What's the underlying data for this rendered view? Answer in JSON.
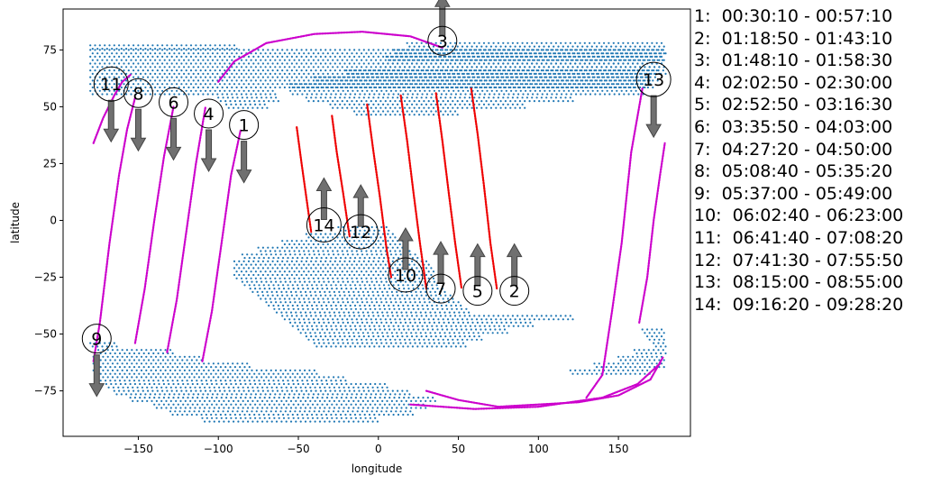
{
  "chart_data": {
    "type": "scatter",
    "xlabel": "longitude",
    "ylabel": "latitude",
    "xlim": [
      -197,
      195
    ],
    "ylim": [
      -95,
      93
    ],
    "xticks": [
      -150,
      -100,
      -50,
      0,
      50,
      100,
      150
    ],
    "yticks": [
      -75,
      -50,
      -25,
      0,
      25,
      50,
      75
    ],
    "grid": false,
    "legend_position": "right",
    "colors": {
      "land": "#1f77b4",
      "track_pink": "#cc00cc",
      "track_red": "#ee0000",
      "arrow": "#707070",
      "axis": "#000000"
    },
    "land_regions": [
      {
        "bands": [
          [
            77,
            -180,
            -88
          ],
          [
            75,
            -180,
            178
          ],
          [
            72,
            -180,
            178
          ],
          [
            69,
            -180,
            178
          ],
          [
            66,
            -180,
            175
          ],
          [
            63,
            -180,
            170
          ],
          [
            60,
            -180,
            165
          ],
          [
            57,
            -180,
            -65
          ],
          [
            54,
            -100,
            -62
          ],
          [
            51,
            -95,
            -70
          ]
        ]
      },
      {
        "bands": [
          [
            78,
            18,
            178
          ],
          [
            75,
            10,
            178
          ],
          [
            72,
            5,
            178
          ],
          [
            69,
            0,
            178
          ],
          [
            66,
            -20,
            178
          ],
          [
            63,
            -40,
            175
          ],
          [
            60,
            -55,
            170
          ],
          [
            57,
            -55,
            165
          ],
          [
            54,
            -45,
            120
          ],
          [
            51,
            -30,
            90
          ],
          [
            48,
            -15,
            50
          ]
        ]
      },
      {
        "bands": [
          [
            -3,
            -25,
            5
          ],
          [
            -6,
            -45,
            10
          ],
          [
            -9,
            -60,
            15
          ],
          [
            -12,
            -75,
            20
          ],
          [
            -15,
            -85,
            25
          ],
          [
            -18,
            -90,
            30
          ],
          [
            -21,
            -90,
            35
          ],
          [
            -24,
            -90,
            35
          ],
          [
            -27,
            -85,
            35
          ],
          [
            -30,
            -80,
            40
          ],
          [
            -33,
            -75,
            45
          ],
          [
            -36,
            -70,
            50
          ],
          [
            -39,
            -65,
            55
          ],
          [
            -42,
            -60,
            120
          ],
          [
            -45,
            -55,
            95
          ],
          [
            -48,
            -50,
            80
          ],
          [
            -51,
            -45,
            65
          ],
          [
            -54,
            -40,
            55
          ]
        ]
      },
      {
        "bands": [
          [
            -54,
            -180,
            -165
          ],
          [
            -57,
            -175,
            -130
          ],
          [
            -60,
            -178,
            -110
          ],
          [
            -63,
            -178,
            -80
          ],
          [
            -66,
            -178,
            -40
          ],
          [
            -69,
            -175,
            -20
          ],
          [
            -72,
            -170,
            5
          ],
          [
            -75,
            -165,
            20
          ],
          [
            -78,
            -155,
            35
          ],
          [
            -81,
            -140,
            30
          ],
          [
            -84,
            -130,
            20
          ],
          [
            -87,
            -110,
            0
          ]
        ]
      },
      {
        "bands": [
          [
            -48,
            165,
            178
          ],
          [
            -51,
            168,
            178
          ],
          [
            -54,
            172,
            178
          ],
          [
            -57,
            160,
            178
          ],
          [
            -60,
            150,
            178
          ],
          [
            -63,
            135,
            178
          ],
          [
            -66,
            120,
            170
          ]
        ]
      }
    ],
    "tracks": [
      {
        "color": "pink",
        "points": [
          [
            -178,
            34
          ],
          [
            -172,
            45
          ],
          [
            -165,
            55
          ],
          [
            -160,
            61
          ],
          [
            -155,
            64
          ]
        ]
      },
      {
        "color": "pink",
        "points": [
          [
            -178,
            -62
          ],
          [
            -174,
            -45
          ],
          [
            -168,
            -10
          ],
          [
            -162,
            20
          ],
          [
            -157,
            40
          ],
          [
            -152,
            54
          ]
        ]
      },
      {
        "color": "pink",
        "points": [
          [
            -152,
            -54
          ],
          [
            -146,
            -30
          ],
          [
            -140,
            0
          ],
          [
            -134,
            28
          ],
          [
            -128,
            50
          ]
        ]
      },
      {
        "color": "pink",
        "points": [
          [
            -132,
            -58
          ],
          [
            -126,
            -35
          ],
          [
            -120,
            -5
          ],
          [
            -114,
            25
          ],
          [
            -108,
            50
          ]
        ]
      },
      {
        "color": "pink",
        "points": [
          [
            -110,
            -62
          ],
          [
            -104,
            -40
          ],
          [
            -98,
            -10
          ],
          [
            -92,
            20
          ],
          [
            -86,
            40
          ]
        ]
      },
      {
        "color": "pink",
        "points": [
          [
            -100,
            61
          ],
          [
            -90,
            70
          ],
          [
            -70,
            78
          ],
          [
            -40,
            82
          ],
          [
            -10,
            83
          ],
          [
            20,
            81
          ],
          [
            40,
            76
          ]
        ]
      },
      {
        "color": "red",
        "points": [
          [
            -51,
            41
          ],
          [
            -48,
            25
          ],
          [
            -45,
            10
          ],
          [
            -42,
            -5
          ]
        ]
      },
      {
        "color": "red",
        "points": [
          [
            -29,
            46
          ],
          [
            -26,
            30
          ],
          [
            -22,
            12
          ],
          [
            -18,
            -7
          ]
        ]
      },
      {
        "color": "red",
        "points": [
          [
            -7,
            51
          ],
          [
            -3,
            30
          ],
          [
            1,
            10
          ],
          [
            5,
            -12
          ],
          [
            8,
            -25
          ]
        ]
      },
      {
        "color": "red",
        "points": [
          [
            14,
            55
          ],
          [
            18,
            35
          ],
          [
            22,
            12
          ],
          [
            26,
            -10
          ],
          [
            30,
            -30
          ]
        ]
      },
      {
        "color": "red",
        "points": [
          [
            36,
            56
          ],
          [
            40,
            35
          ],
          [
            44,
            12
          ],
          [
            48,
            -10
          ],
          [
            52,
            -30
          ]
        ]
      },
      {
        "color": "red",
        "points": [
          [
            58,
            58
          ],
          [
            62,
            38
          ],
          [
            66,
            15
          ],
          [
            70,
            -10
          ],
          [
            74,
            -30
          ]
        ]
      },
      {
        "color": "pink",
        "points": [
          [
            163,
            -45
          ],
          [
            168,
            -25
          ],
          [
            172,
            0
          ],
          [
            176,
            20
          ],
          [
            179,
            34
          ]
        ]
      },
      {
        "color": "pink",
        "points": [
          [
            130,
            -78
          ],
          [
            140,
            -68
          ],
          [
            146,
            -40
          ],
          [
            152,
            -10
          ],
          [
            158,
            30
          ],
          [
            165,
            58
          ]
        ]
      },
      {
        "color": "pink",
        "points": [
          [
            30,
            -75
          ],
          [
            50,
            -79
          ],
          [
            75,
            -82
          ],
          [
            100,
            -81
          ],
          [
            125,
            -80
          ],
          [
            150,
            -77
          ],
          [
            170,
            -70
          ],
          [
            178,
            -60
          ]
        ]
      },
      {
        "color": "pink",
        "points": [
          [
            20,
            -81
          ],
          [
            60,
            -83
          ],
          [
            100,
            -82
          ],
          [
            140,
            -78
          ],
          [
            162,
            -72
          ],
          [
            176,
            -63
          ]
        ]
      }
    ],
    "labels": [
      {
        "id": "1",
        "x": -84,
        "y": 42,
        "arrow": "down"
      },
      {
        "id": "2",
        "x": 85,
        "y": -31,
        "arrow": "up"
      },
      {
        "id": "3",
        "x": 40,
        "y": 79,
        "arrow": "up"
      },
      {
        "id": "4",
        "x": -106,
        "y": 47,
        "arrow": "down"
      },
      {
        "id": "5",
        "x": 62,
        "y": -31,
        "arrow": "up"
      },
      {
        "id": "6",
        "x": -128,
        "y": 52,
        "arrow": "down"
      },
      {
        "id": "7",
        "x": 39,
        "y": -30,
        "arrow": "up"
      },
      {
        "id": "8",
        "x": -150,
        "y": 56,
        "arrow": "down"
      },
      {
        "id": "9",
        "x": -176,
        "y": -52,
        "arrow": "down"
      },
      {
        "id": "10",
        "x": 17,
        "y": -24,
        "arrow": "up"
      },
      {
        "id": "11",
        "x": -167,
        "y": 60,
        "arrow": "down"
      },
      {
        "id": "12",
        "x": -11,
        "y": -5,
        "arrow": "up"
      },
      {
        "id": "13",
        "x": 172,
        "y": 62,
        "arrow": "down"
      },
      {
        "id": "14",
        "x": -34,
        "y": -2,
        "arrow": "up"
      }
    ],
    "legend": [
      "1:  00:30:10 - 00:57:10",
      "2:  01:18:50 - 01:43:10",
      "3:  01:48:10 - 01:58:30",
      "4:  02:02:50 - 02:30:00",
      "5:  02:52:50 - 03:16:30",
      "6:  03:35:50 - 04:03:00",
      "7:  04:27:20 - 04:50:00",
      "8:  05:08:40 - 05:35:20",
      "9:  05:37:00 - 05:49:00",
      "10:  06:02:40 - 06:23:00",
      "11:  06:41:40 - 07:08:20",
      "12:  07:41:30 - 07:55:50",
      "13:  08:15:00 - 08:55:00",
      "14:  09:16:20 - 09:28:20"
    ]
  }
}
